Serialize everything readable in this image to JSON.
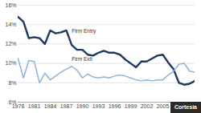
{
  "chart_data": {
    "type": "line",
    "x": [
      1978,
      1979,
      1980,
      1981,
      1982,
      1983,
      1984,
      1985,
      1986,
      1987,
      1988,
      1989,
      1990,
      1991,
      1992,
      1993,
      1994,
      1995,
      1996,
      1997,
      1998,
      1999,
      2000,
      2001,
      2002,
      2003,
      2004,
      2005,
      2006,
      2007,
      2008,
      2009,
      2010,
      2011
    ],
    "series": [
      {
        "name": "Firm Entry",
        "color": "#1f3a5f",
        "values": [
          14.8,
          14.3,
          12.6,
          12.7,
          12.6,
          12.0,
          13.4,
          13.1,
          13.2,
          13.4,
          11.9,
          11.4,
          11.4,
          10.9,
          10.8,
          11.1,
          11.3,
          11.1,
          11.1,
          10.9,
          10.4,
          10.0,
          9.6,
          10.2,
          10.2,
          10.5,
          10.8,
          10.9,
          10.1,
          9.4,
          8.0,
          7.8,
          7.9,
          8.2
        ]
      },
      {
        "name": "Firm Exit",
        "color": "#8fb3d9",
        "values": [
          10.5,
          8.5,
          10.3,
          10.2,
          8.0,
          9.0,
          8.3,
          8.7,
          9.1,
          9.4,
          9.7,
          9.3,
          8.5,
          8.9,
          8.6,
          8.5,
          8.6,
          8.5,
          8.7,
          8.8,
          8.7,
          8.5,
          8.3,
          8.2,
          8.3,
          8.2,
          8.3,
          8.3,
          8.8,
          9.2,
          9.9,
          10.0,
          9.2,
          9.1
        ]
      }
    ],
    "annotations": [
      {
        "text": "Firm Entry",
        "x": 1988,
        "y": 13.3
      },
      {
        "text": "Firm Exit",
        "x": 1988,
        "y": 10.4
      }
    ],
    "credit": "Cortesía",
    "xlim": [
      1978,
      2011
    ],
    "xticks": [
      1978,
      1981,
      1984,
      1987,
      1990,
      1993,
      1996,
      1999,
      2002,
      2005
    ],
    "ylim": [
      6,
      16
    ],
    "yticks": [
      {
        "value": 6,
        "label": "6%"
      },
      {
        "value": 8,
        "label": "8%"
      },
      {
        "value": 10,
        "label": "10%"
      },
      {
        "value": 12,
        "label": "12%"
      },
      {
        "value": 14,
        "label": "14%"
      },
      {
        "value": 16,
        "label": "16%"
      }
    ],
    "grid": true
  }
}
